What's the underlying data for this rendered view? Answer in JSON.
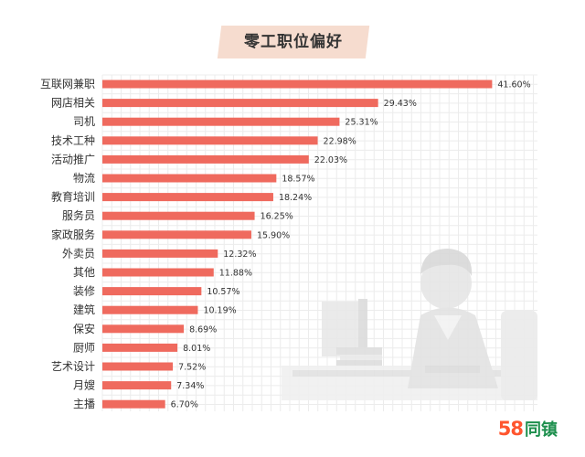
{
  "chart_data": {
    "type": "bar",
    "orientation": "horizontal",
    "title": "零工职位偏好",
    "categories": [
      "互联网兼职",
      "网店相关",
      "司机",
      "技术工种",
      "活动推广",
      "物流",
      "教育培训",
      "服务员",
      "家政服务",
      "外卖员",
      "其他",
      "装修",
      "建筑",
      "保安",
      "厨师",
      "艺术设计",
      "月嫂",
      "主播"
    ],
    "values": [
      41.6,
      29.43,
      25.31,
      22.98,
      22.03,
      18.57,
      18.24,
      16.25,
      15.9,
      12.32,
      11.88,
      10.57,
      10.19,
      8.69,
      8.01,
      7.52,
      7.34,
      6.7
    ],
    "value_labels": [
      "41.60%",
      "29.43%",
      "25.31%",
      "22.98%",
      "22.03%",
      "18.57%",
      "18.24%",
      "16.25%",
      "15.90%",
      "12.32%",
      "11.88%",
      "10.57%",
      "10.19%",
      "8.69%",
      "8.01%",
      "7.52%",
      "7.34%",
      "6.70%"
    ],
    "unit": "%",
    "xlim": [
      0,
      45
    ],
    "grid": true,
    "legend": "none",
    "colors": {
      "bar": "#ef6a5e",
      "grid": "#ececec",
      "title_bg": "#f6dccf",
      "illustration": "#e6e6e6"
    }
  },
  "logo": {
    "number": "58",
    "text": "同镇",
    "number_color": "#ff552e",
    "text_color": "#1d8f4d"
  }
}
